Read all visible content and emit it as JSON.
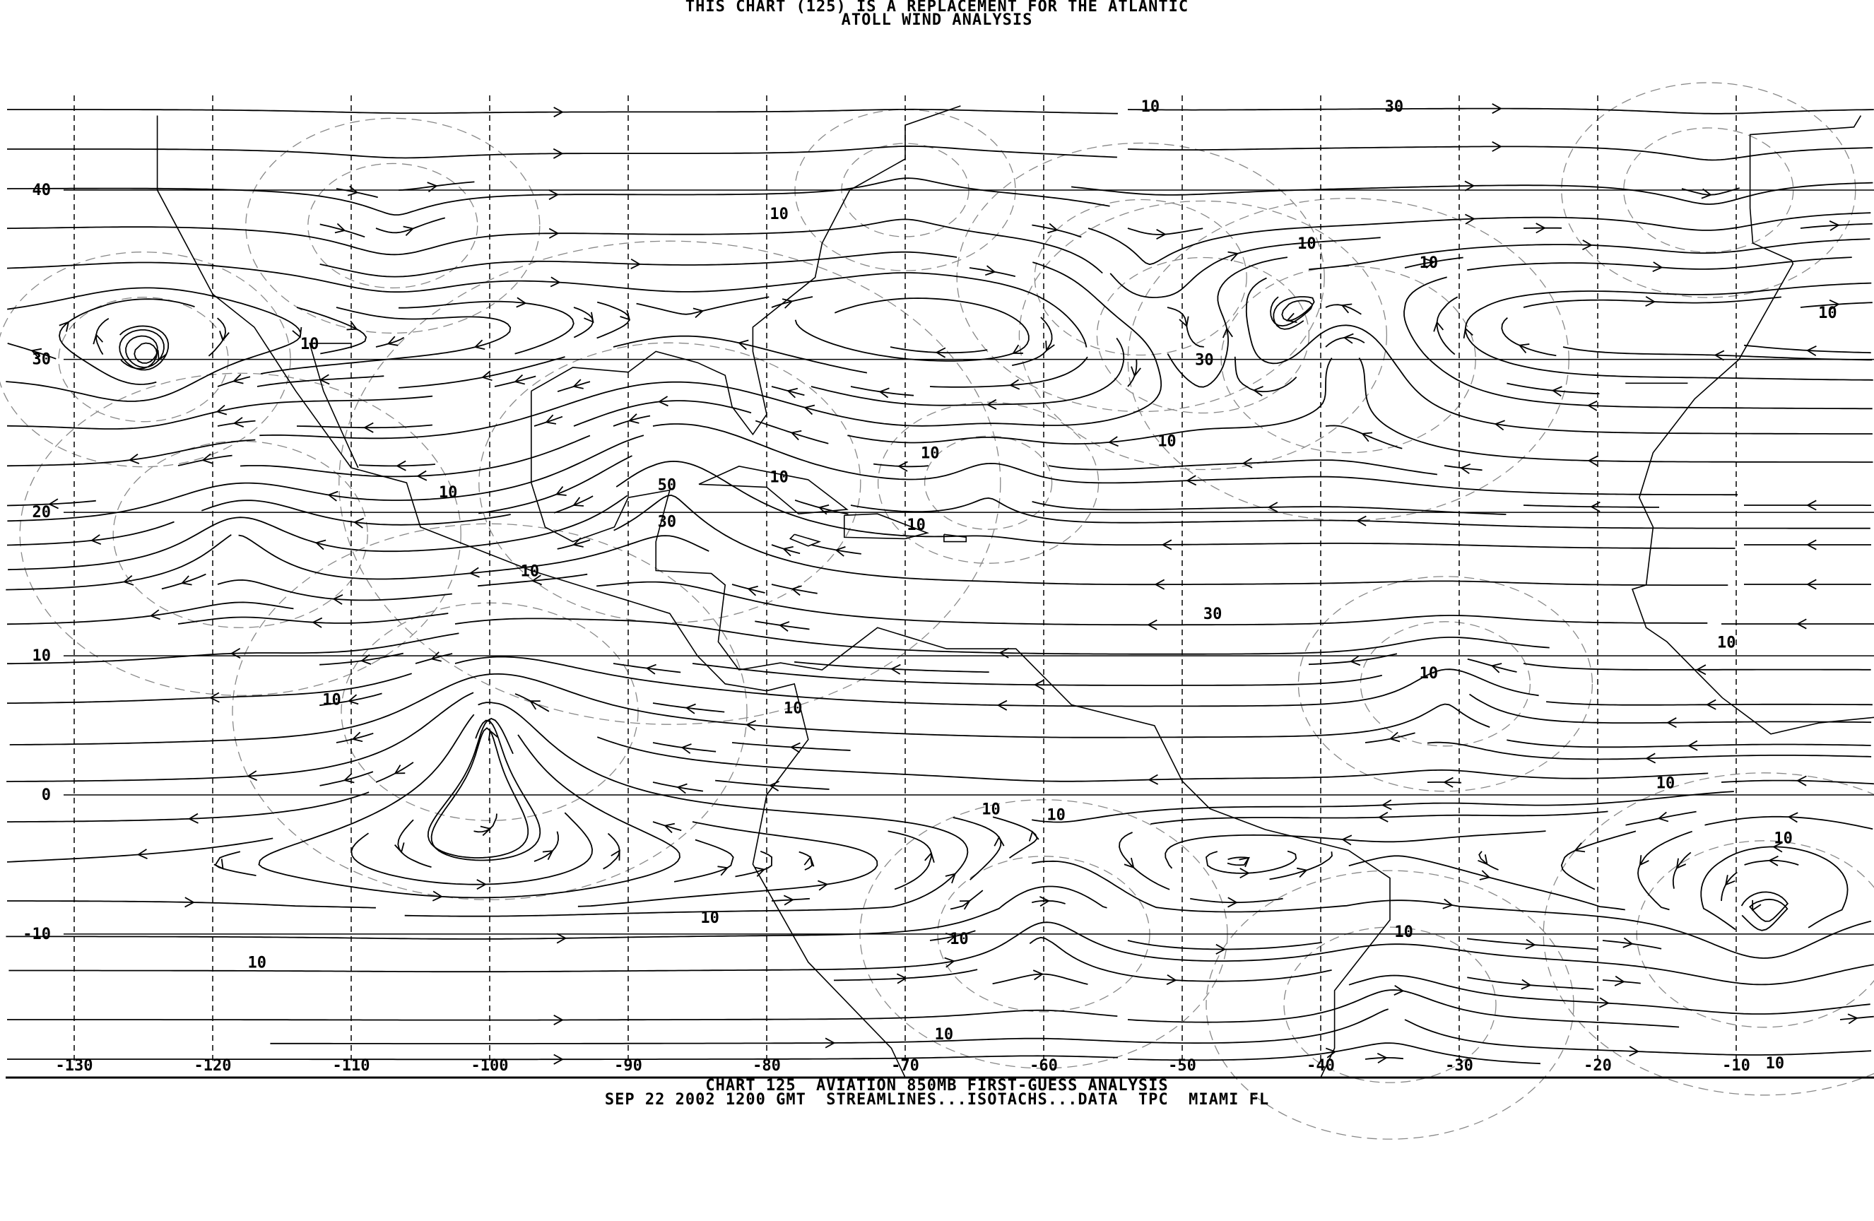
{
  "header": {
    "line1": "THIS CHART (125) IS A REPLACEMENT FOR THE ATLANTIC",
    "line2": "ATOLL WIND ANALYSIS"
  },
  "footer": {
    "line1": "CHART 125  AVIATION 850MB FIRST-GUESS ANALYSIS",
    "line2": "SEP 22 2002 1200 GMT  STREAMLINES...ISOTACHS...DATA  TPC  MIAMI FL"
  },
  "map": {
    "projection": "mercator",
    "lon_range": [
      -135,
      0
    ],
    "lat_range": [
      -20,
      45
    ],
    "line_color": "#000000",
    "isotach_color": "#888888",
    "latitude_labels": [
      {
        "lat": 40,
        "text": "40"
      },
      {
        "lat": 30,
        "text": "30"
      },
      {
        "lat": 20,
        "text": "20"
      },
      {
        "lat": 10,
        "text": "10"
      },
      {
        "lat": 0,
        "text": "0"
      },
      {
        "lat": -10,
        "text": "-10"
      }
    ],
    "longitude_labels": [
      {
        "lon": -130,
        "text": "-130"
      },
      {
        "lon": -120,
        "text": "-120"
      },
      {
        "lon": -110,
        "text": "-110"
      },
      {
        "lon": -100,
        "text": "-100"
      },
      {
        "lon": -90,
        "text": "-90"
      },
      {
        "lon": -80,
        "text": "-80"
      },
      {
        "lon": -70,
        "text": "-70"
      },
      {
        "lon": -60,
        "text": "-60"
      },
      {
        "lon": -50,
        "text": "-50"
      },
      {
        "lon": -40,
        "text": "-40"
      },
      {
        "lon": -30,
        "text": "-30"
      },
      {
        "lon": -20,
        "text": "-20"
      },
      {
        "lon": -10,
        "text": "-10"
      }
    ],
    "isotach_labels": [
      {
        "text": "10",
        "lon": -52.3,
        "lat": 44.5
      },
      {
        "text": "30",
        "lon": -34.7,
        "lat": 44.5
      },
      {
        "text": "10",
        "lon": -79.1,
        "lat": 38.7
      },
      {
        "text": "10",
        "lon": -41.0,
        "lat": 37.0
      },
      {
        "text": "10",
        "lon": -32.2,
        "lat": 35.9
      },
      {
        "text": "10",
        "lon": -3.4,
        "lat": 32.9
      },
      {
        "text": "10",
        "lon": -113.0,
        "lat": 31.0
      },
      {
        "text": "30",
        "lon": -48.4,
        "lat": 30.0
      },
      {
        "text": "10",
        "lon": -68.2,
        "lat": 24.0
      },
      {
        "text": "10",
        "lon": -51.1,
        "lat": 24.8
      },
      {
        "text": "10",
        "lon": -103.0,
        "lat": 21.4
      },
      {
        "text": "50",
        "lon": -87.2,
        "lat": 21.9
      },
      {
        "text": "10",
        "lon": -79.1,
        "lat": 22.4
      },
      {
        "text": "30",
        "lon": -87.2,
        "lat": 19.4
      },
      {
        "text": "10",
        "lon": -69.2,
        "lat": 19.2
      },
      {
        "text": "10",
        "lon": -97.1,
        "lat": 16.0
      },
      {
        "text": "30",
        "lon": -47.8,
        "lat": 13.0
      },
      {
        "text": "10",
        "lon": -32.2,
        "lat": 8.8
      },
      {
        "text": "10",
        "lon": -10.7,
        "lat": 11.0
      },
      {
        "text": "10",
        "lon": -111.4,
        "lat": 6.9
      },
      {
        "text": "10",
        "lon": -78.1,
        "lat": 6.3
      },
      {
        "text": "10",
        "lon": -63.8,
        "lat": -1.0
      },
      {
        "text": "10",
        "lon": -59.1,
        "lat": -1.4
      },
      {
        "text": "10",
        "lon": -15.1,
        "lat": 0.9
      },
      {
        "text": "10",
        "lon": -6.6,
        "lat": -3.1
      },
      {
        "text": "10",
        "lon": -84.1,
        "lat": -8.8
      },
      {
        "text": "10",
        "lon": -66.1,
        "lat": -10.3
      },
      {
        "text": "10",
        "lon": -34.0,
        "lat": -9.8
      },
      {
        "text": "10",
        "lon": -116.8,
        "lat": -12.0
      },
      {
        "text": "10",
        "lon": -67.2,
        "lat": -17.0
      },
      {
        "text": "10",
        "lon": -7.2,
        "lat": -19.0
      }
    ]
  }
}
